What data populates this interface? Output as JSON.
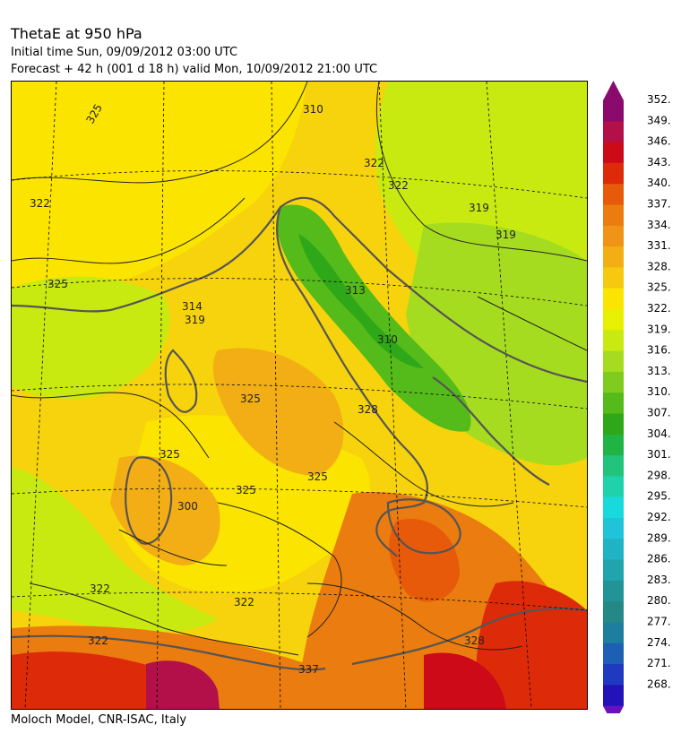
{
  "header": {
    "title": "ThetaE at 950 hPa",
    "initial": "Initial time  Sun, 09/09/2012  03:00 UTC",
    "forecast": "Forecast  +  42 h  (001 d 18 h)  valid Mon, 10/09/2012 21:00 UTC"
  },
  "footer": {
    "credit": "Moloch Model, CNR-ISAC, Italy"
  },
  "colorbar": {
    "labels": [
      "352.",
      "349.",
      "346.",
      "343.",
      "340.",
      "337.",
      "334.",
      "331.",
      "328.",
      "325.",
      "322.",
      "319.",
      "316.",
      "313.",
      "310.",
      "307.",
      "304.",
      "301.",
      "298.",
      "295.",
      "292.",
      "289.",
      "286.",
      "283.",
      "280.",
      "277.",
      "274.",
      "271.",
      "268."
    ],
    "colors": [
      "#8b0a6e",
      "#b3104a",
      "#cc0a18",
      "#dd2a08",
      "#e65a0a",
      "#ea7c10",
      "#ef9416",
      "#f2ae14",
      "#f6c80e",
      "#fbe400",
      "#e6f000",
      "#c9ea10",
      "#a6dc20",
      "#7fcc1e",
      "#55bb1a",
      "#2ea818",
      "#1fb444",
      "#22c47c",
      "#1ed3ac",
      "#18d9dc",
      "#20c4d8",
      "#1fb3c3",
      "#21a4ad",
      "#229498",
      "#238886",
      "#1e7e9e",
      "#1d5fb4",
      "#1f39c0",
      "#2312b8"
    ],
    "arrow_top": "#8b0a6e",
    "arrow_bottom": "#6a10c0"
  },
  "map": {
    "contour_labels": [
      "325",
      "322",
      "319",
      "314",
      "319",
      "313",
      "310",
      "322",
      "319",
      "325",
      "328",
      "325",
      "300",
      "322",
      "322",
      "328",
      "337",
      "310",
      "325",
      "325",
      "325",
      "322",
      "322"
    ]
  }
}
